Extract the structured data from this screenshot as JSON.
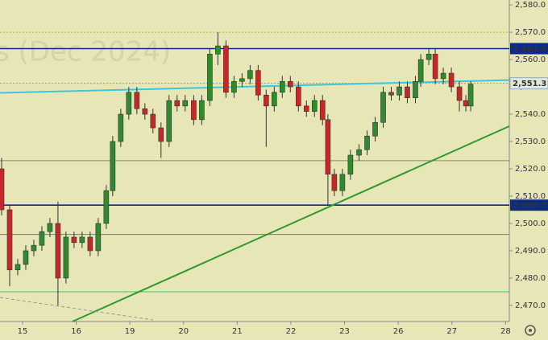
{
  "chart_data": {
    "type": "candlestick",
    "watermark": "s (Dec 2024)",
    "xlim": [
      -0.42,
      9.07
    ],
    "xticks": [
      {
        "value": 0,
        "label": "15"
      },
      {
        "value": 1,
        "label": "16"
      },
      {
        "value": 2,
        "label": "19"
      },
      {
        "value": 3,
        "label": "20"
      },
      {
        "value": 4,
        "label": "21"
      },
      {
        "value": 5,
        "label": "22"
      },
      {
        "value": 6,
        "label": "23"
      },
      {
        "value": 7,
        "label": "26"
      },
      {
        "value": 8,
        "label": "27"
      },
      {
        "value": 9,
        "label": "28"
      }
    ],
    "ylim": [
      2464.1,
      2581.8
    ],
    "yticks": [
      {
        "value": 2470,
        "label": "2,470.0"
      },
      {
        "value": 2480,
        "label": "2,480.0"
      },
      {
        "value": 2490,
        "label": "2,490.0"
      },
      {
        "value": 2500,
        "label": "2,500.0"
      },
      {
        "value": 2510,
        "label": "2,510.0"
      },
      {
        "value": 2520,
        "label": "2,520.0"
      },
      {
        "value": 2530,
        "label": "2,530.0"
      },
      {
        "value": 2540,
        "label": "2,540.0"
      },
      {
        "value": 2550,
        "label": "2,550.0"
      },
      {
        "value": 2560,
        "label": "2,560.0"
      },
      {
        "value": 2570,
        "label": "2,570.0"
      },
      {
        "value": 2580,
        "label": "2,580.0"
      }
    ],
    "up_color": "#2e8b2e",
    "down_color": "#c62828",
    "x": [
      -0.39,
      -0.24,
      -0.09,
      0.06,
      0.21,
      0.36,
      0.51,
      0.66,
      0.81,
      0.96,
      1.11,
      1.26,
      1.41,
      1.56,
      1.68,
      1.83,
      1.98,
      2.13,
      2.28,
      2.43,
      2.58,
      2.73,
      2.88,
      3.03,
      3.19,
      3.34,
      3.49,
      3.64,
      3.79,
      3.94,
      4.09,
      4.24,
      4.39,
      4.54,
      4.69,
      4.84,
      4.99,
      5.14,
      5.29,
      5.44,
      5.59,
      5.69,
      5.81,
      5.96,
      6.11,
      6.27,
      6.42,
      6.57,
      6.72,
      6.87,
      7.02,
      7.17,
      7.32,
      7.42,
      7.57,
      7.69,
      7.84,
      7.99,
      8.14,
      8.26,
      8.35
    ],
    "open": [
      2520,
      2505,
      2483,
      2485,
      2490,
      2492,
      2497,
      2500,
      2480,
      2495,
      2493,
      2495,
      2490,
      2500,
      2512,
      2530,
      2540,
      2548,
      2542,
      2540,
      2535,
      2530,
      2545,
      2543,
      2545,
      2538,
      2545,
      2562,
      2565,
      2548,
      2552,
      2553,
      2556,
      2547,
      2543,
      2548,
      2552,
      2550,
      2543,
      2541,
      2545,
      2538,
      2518,
      2512,
      2518,
      2525,
      2527,
      2532,
      2537,
      2548,
      2547,
      2550,
      2546,
      2552,
      2560,
      2562,
      2553,
      2555,
      2550,
      2545,
      2543
    ],
    "high": [
      2524,
      2507,
      2487,
      2492,
      2494,
      2499,
      2502,
      2508,
      2497,
      2497,
      2497,
      2497,
      2502,
      2514,
      2532,
      2542,
      2550,
      2550,
      2544,
      2542,
      2537,
      2547,
      2547,
      2547,
      2547,
      2547,
      2564,
      2570,
      2567,
      2554,
      2555,
      2558,
      2558,
      2549,
      2550,
      2554,
      2554,
      2552,
      2545,
      2547,
      2547,
      2540,
      2520,
      2520,
      2527,
      2529,
      2534,
      2539,
      2550,
      2550,
      2552,
      2552,
      2554,
      2562,
      2564,
      2564,
      2557,
      2557,
      2552,
      2547,
      2552
    ],
    "low": [
      2503,
      2477,
      2481,
      2483,
      2488,
      2490,
      2495,
      2470,
      2478,
      2491,
      2491,
      2488,
      2488,
      2498,
      2510,
      2528,
      2538,
      2540,
      2538,
      2533,
      2524,
      2528,
      2541,
      2541,
      2536,
      2536,
      2543,
      2558,
      2546,
      2546,
      2550,
      2551,
      2545,
      2528,
      2541,
      2546,
      2548,
      2541,
      2539,
      2539,
      2536,
      2507,
      2510,
      2510,
      2516,
      2523,
      2525,
      2530,
      2535,
      2545,
      2545,
      2544,
      2544,
      2550,
      2558,
      2551,
      2551,
      2548,
      2541,
      2541,
      2541
    ],
    "close": [
      2505,
      2483,
      2485,
      2490,
      2492,
      2497,
      2500,
      2480,
      2495,
      2493,
      2495,
      2490,
      2500,
      2512,
      2530,
      2540,
      2548,
      2542,
      2540,
      2535,
      2530,
      2545,
      2543,
      2545,
      2538,
      2545,
      2562,
      2565,
      2548,
      2552,
      2553,
      2556,
      2547,
      2543,
      2548,
      2552,
      2550,
      2543,
      2541,
      2545,
      2538,
      2518,
      2512,
      2518,
      2525,
      2527,
      2532,
      2537,
      2548,
      2547,
      2550,
      2546,
      2552,
      2560,
      2562,
      2553,
      2555,
      2550,
      2545,
      2543,
      2551
    ],
    "levels": [
      {
        "value": 2570,
        "color": "#8cc83c",
        "dash": true
      },
      {
        "value": 2564,
        "color": "#0b2a8c",
        "label": "2,564.0"
      },
      {
        "value": 2551.3,
        "color": "#999999",
        "dash": true,
        "label": "2,551.3"
      },
      {
        "value": 2523,
        "color": "#8a8a6a"
      },
      {
        "value": 2506.7,
        "color": "#0b2a8c",
        "label": "2,506.7"
      },
      {
        "value": 2496,
        "color": "#3a8ad0"
      },
      {
        "value": 2475,
        "color": "#3cc878"
      }
    ],
    "trendlines": [
      {
        "x": [
          -0.42,
          9.07
        ],
        "y": [
          2547.8,
          2552.5
        ],
        "color": "#3cc8dc"
      },
      {
        "x": [
          0.93,
          9.07
        ],
        "y": [
          2464.1,
          2535.6
        ],
        "color": "#2e9a2e"
      },
      {
        "x": [
          -0.42,
          2.43
        ],
        "y": [
          2472.9,
          2464.7
        ],
        "color": "#999999",
        "dash": true
      }
    ]
  }
}
